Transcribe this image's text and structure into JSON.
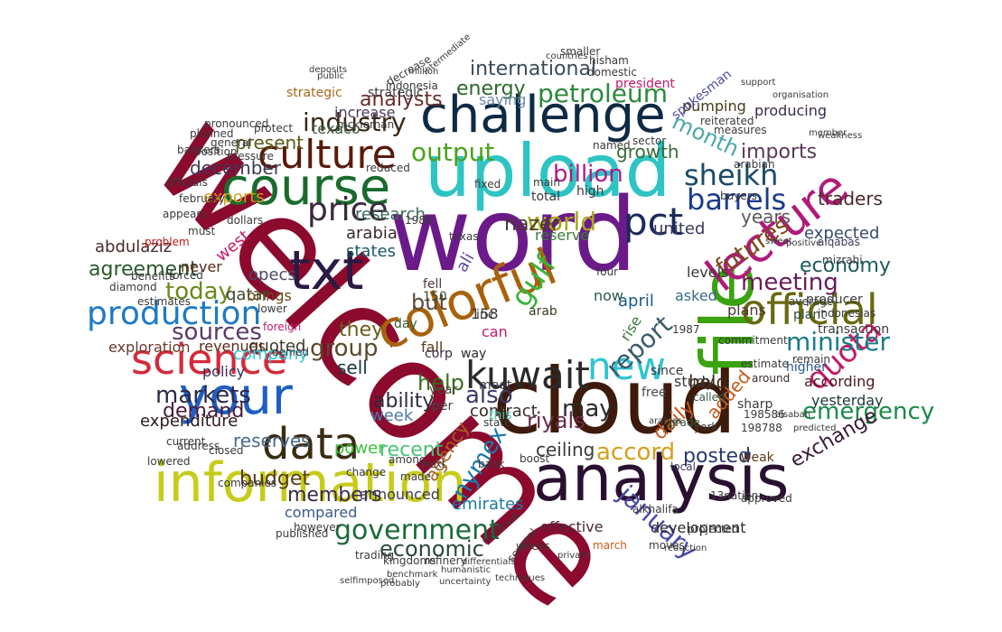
{
  "cloud": {
    "shape": "ellipse",
    "background": "#ffffff",
    "words": [
      {
        "text": "welcome",
        "color": "#8b0a2e"
      },
      {
        "text": "word",
        "color": "#6b1a8a"
      },
      {
        "text": "cloud",
        "color": "#3d1a0a"
      },
      {
        "text": "challenge",
        "color": "#0f2a44"
      },
      {
        "text": "upload",
        "color": "#2ec4c4"
      },
      {
        "text": "analysis",
        "color": "#2a1030"
      },
      {
        "text": "information",
        "color": "#c7cc1a"
      },
      {
        "text": "file",
        "color": "#3aa30f"
      },
      {
        "text": "course",
        "color": "#1a6b2e"
      },
      {
        "text": "culture",
        "color": "#5a1a0a"
      },
      {
        "text": "txt",
        "color": "#2a1a44"
      },
      {
        "text": "colorful",
        "color": "#a8620c"
      },
      {
        "text": "science",
        "color": "#d42a3a"
      },
      {
        "text": "your",
        "color": "#1f5fc4"
      },
      {
        "text": "data",
        "color": "#3a2a10"
      },
      {
        "text": "lecture",
        "color": "#b01a7a"
      },
      {
        "text": "pct",
        "color": "#1a2a5a"
      },
      {
        "text": "official",
        "color": "#6a6a10"
      },
      {
        "text": "kuwait",
        "color": "#2a2a2a"
      },
      {
        "text": "production",
        "color": "#1f7ac4"
      },
      {
        "text": "government",
        "color": "#1a6b3a"
      },
      {
        "text": "price",
        "color": "#3a2a3a"
      },
      {
        "text": "barrels",
        "color": "#1a3a8a"
      },
      {
        "text": "new",
        "color": "#2ec4d4"
      },
      {
        "text": "quota",
        "color": "#c41a6a"
      },
      {
        "text": "minister",
        "color": "#1a7a8a"
      },
      {
        "text": "meeting",
        "color": "#6a1a5a"
      },
      {
        "text": "petroleum",
        "color": "#2a8a3a"
      },
      {
        "text": "industry",
        "color": "#3a2a1a"
      },
      {
        "text": "output",
        "color": "#4aa31a"
      },
      {
        "text": "world",
        "color": "#a8a81a"
      },
      {
        "text": "billion",
        "color": "#b01a8a"
      },
      {
        "text": "sheikh",
        "color": "#1a4a6a"
      },
      {
        "text": "futures",
        "color": "#7a4a1a"
      },
      {
        "text": "gulf",
        "color": "#3ab43a"
      },
      {
        "text": "markets",
        "color": "#2a2a4a"
      },
      {
        "text": "sources",
        "color": "#5a3a6a"
      },
      {
        "text": "today",
        "color": "#6a8a1a"
      },
      {
        "text": "group",
        "color": "#5a4a2a"
      },
      {
        "text": "report",
        "color": "#3a5a6a"
      },
      {
        "text": "accord",
        "color": "#d4a01a"
      },
      {
        "text": "emergency",
        "color": "#1a8a4a"
      },
      {
        "text": "also",
        "color": "#3a3a6a"
      },
      {
        "text": "january",
        "color": "#4a4aa8"
      },
      {
        "text": "nymex",
        "color": "#1a7aa8"
      },
      {
        "text": "economic",
        "color": "#2a4a3a"
      },
      {
        "text": "members",
        "color": "#3a2a4a"
      },
      {
        "text": "budget",
        "color": "#5a3a1a"
      },
      {
        "text": "reserves",
        "color": "#4a6a8a"
      },
      {
        "text": "recent",
        "color": "#4ac47a"
      },
      {
        "text": "demand",
        "color": "#4a1a3a"
      },
      {
        "text": "agreement",
        "color": "#2a5a2a"
      },
      {
        "text": "month",
        "color": "#4aa8a8"
      },
      {
        "text": "imports",
        "color": "#5a3a5a"
      },
      {
        "text": "analysts",
        "color": "#6a2a2a"
      },
      {
        "text": "international",
        "color": "#3a4a5a"
      },
      {
        "text": "energy",
        "color": "#2a6a2a"
      },
      {
        "text": "december",
        "color": "#3a3a5a"
      },
      {
        "text": "present",
        "color": "#5a5a1a"
      },
      {
        "text": "nazer",
        "color": "#4a3a2a"
      },
      {
        "text": "economy",
        "color": "#1a5a5a"
      },
      {
        "text": "exchange",
        "color": "#3a1a3a"
      },
      {
        "text": "posted",
        "color": "#2a3a6a"
      },
      {
        "text": "riyals",
        "color": "#6a2a4a"
      },
      {
        "text": "daily",
        "color": "#c45a1a"
      },
      {
        "text": "help",
        "color": "#3a6a1a"
      },
      {
        "text": "ability",
        "color": "#2a2a3a"
      },
      {
        "text": "they",
        "color": "#6a5a1a"
      },
      {
        "text": "but",
        "color": "#5a4a3a"
      },
      {
        "text": "may",
        "color": "#2a2a2a"
      },
      {
        "text": "say",
        "color": "#4a3a4a"
      },
      {
        "text": "sell",
        "color": "#1a3a3a"
      },
      {
        "text": "quoted",
        "color": "#3a3a2a"
      },
      {
        "text": "expenditure",
        "color": "#2a1a1a"
      },
      {
        "text": "abdulaziz",
        "color": "#4a2a2a"
      },
      {
        "text": "exploration",
        "color": "#6a3a2a"
      },
      {
        "text": "revenues",
        "color": "#5a2a1a"
      },
      {
        "text": "policy",
        "color": "#3a2a5a"
      },
      {
        "text": "company",
        "color": "#2ec4d4"
      },
      {
        "text": "week",
        "color": "#4a7aa8"
      },
      {
        "text": "power",
        "color": "#3ac43a"
      },
      {
        "text": "agency",
        "color": "#a8621a"
      },
      {
        "text": "ceiling",
        "color": "#3a3a3a"
      },
      {
        "text": "contract",
        "color": "#3a2a2a"
      },
      {
        "text": "emirates",
        "color": "#1a7aa8"
      },
      {
        "text": "announced",
        "color": "#3a3a4a"
      },
      {
        "text": "compared",
        "color": "#3a5a8a"
      },
      {
        "text": "development",
        "color": "#2a2a2a"
      },
      {
        "text": "effective",
        "color": "#4a2a3a"
      },
      {
        "text": "years",
        "color": "#5a5a5a"
      },
      {
        "text": "traders",
        "color": "#4a2a2a"
      },
      {
        "text": "expected",
        "color": "#3a4a6a"
      },
      {
        "text": "growth",
        "color": "#3a6a3a"
      },
      {
        "text": "united",
        "color": "#3a3a5a"
      },
      {
        "text": "arabia",
        "color": "#3a2a2a"
      },
      {
        "text": "states",
        "color": "#1a5a6a"
      },
      {
        "text": "opecs",
        "color": "#4a4a6a"
      },
      {
        "text": "qatar",
        "color": "#3a4a2a"
      },
      {
        "text": "never",
        "color": "#5a2a1a"
      },
      {
        "text": "brings",
        "color": "#6a4a1a"
      },
      {
        "text": "west",
        "color": "#c41a6a"
      },
      {
        "text": "research",
        "color": "#3a6a5a"
      },
      {
        "text": "exports",
        "color": "#d4a01a"
      },
      {
        "text": "plans",
        "color": "#4a3a2a"
      },
      {
        "text": "levels",
        "color": "#3a3a3a"
      },
      {
        "text": "april",
        "color": "#1a5a8a"
      },
      {
        "text": "asked",
        "color": "#3a6a8a"
      },
      {
        "text": "according",
        "color": "#4a1a1a"
      },
      {
        "text": "producing",
        "color": "#3a2a4a"
      },
      {
        "text": "pumping",
        "color": "#4a3a1a"
      },
      {
        "text": "saying",
        "color": "#6a8aa8"
      },
      {
        "text": "increase",
        "color": "#4a3a5a"
      },
      {
        "text": "strategic",
        "color": "#a86a1a"
      },
      {
        "text": "texaco",
        "color": "#3a5a3a"
      },
      {
        "text": "yesterday",
        "color": "#1a3a3a"
      },
      {
        "text": "study",
        "color": "#3a3a3a"
      },
      {
        "text": "hold",
        "color": "#3a2a1a"
      },
      {
        "text": "added",
        "color": "#c45a1a"
      },
      {
        "text": "free",
        "color": "#4a4a4a"
      },
      {
        "text": "rise",
        "color": "#3a7a3a"
      },
      {
        "text": "inc",
        "color": "#3a3a3a"
      },
      {
        "text": "fall",
        "color": "#5a3a1a"
      },
      {
        "text": "fell",
        "color": "#4a3a3a"
      },
      {
        "text": "now",
        "color": "#2a5a4a"
      },
      {
        "text": "four",
        "color": "#3a3a3a"
      },
      {
        "text": "ali",
        "color": "#5a4aa8"
      },
      {
        "text": "150",
        "color": "#3a4a3a"
      },
      {
        "text": "158",
        "color": "#3a3a3a"
      },
      {
        "text": "arab",
        "color": "#3a3a2a"
      },
      {
        "text": "corp",
        "color": "#3a2a3a"
      },
      {
        "text": "way",
        "color": "#2a2a2a"
      },
      {
        "text": "meet",
        "color": "#3a3a4a"
      },
      {
        "text": "per",
        "color": "#3a4a4a"
      },
      {
        "text": "year",
        "color": "#4a4a3a"
      },
      {
        "text": "this",
        "color": "#4ac4a8"
      },
      {
        "text": "day",
        "color": "#3a5a3a"
      },
      {
        "text": "can",
        "color": "#c41a6a"
      },
      {
        "text": "reserve",
        "color": "#3a7a3a"
      },
      {
        "text": "total",
        "color": "#3a3a3a"
      },
      {
        "text": "high",
        "color": "#3a3a3a"
      },
      {
        "text": "fixed",
        "color": "#3a3a3a"
      },
      {
        "text": "main",
        "color": "#3a3a3a"
      },
      {
        "text": "grade",
        "color": "#3a5a3a"
      },
      {
        "text": "sharp",
        "color": "#3a3a3a"
      },
      {
        "text": "weak",
        "color": "#5a3a1a"
      },
      {
        "text": "york",
        "color": "#3a3a3a"
      },
      {
        "text": "called",
        "color": "#3a5a4a"
      },
      {
        "text": "since",
        "color": "#3a3a3a"
      },
      {
        "text": "local",
        "color": "#3a3a5a"
      },
      {
        "text": "remain",
        "color": "#3a3a3a"
      },
      {
        "text": "around",
        "color": "#3a2a2a"
      },
      {
        "text": "higher",
        "color": "#2a5a8a"
      },
      {
        "text": "producer",
        "color": "#3a3a3a"
      },
      {
        "text": "transaction",
        "color": "#3a3a3a"
      },
      {
        "text": "average",
        "color": "#3a3a3a"
      },
      {
        "text": "plant",
        "color": "#2a4a3a"
      },
      {
        "text": "indonesias",
        "color": "#3a3a3a"
      },
      {
        "text": "mizrahi",
        "color": "#3a3a3a"
      },
      {
        "text": "alqabas",
        "color": "#3a3a5a"
      },
      {
        "text": "reiterated",
        "color": "#3a3a3a"
      },
      {
        "text": "measures",
        "color": "#3a3a3a"
      },
      {
        "text": "spokesman",
        "color": "#4a4aa8"
      },
      {
        "text": "president",
        "color": "#c41a6a"
      },
      {
        "text": "domestic",
        "color": "#3a3a3a"
      },
      {
        "text": "hisham",
        "color": "#3a3a3a"
      },
      {
        "text": "smaller",
        "color": "#3a3a3a"
      },
      {
        "text": "countries",
        "color": "#3a3a3a"
      },
      {
        "text": "intermediate",
        "color": "#3a3a3a"
      },
      {
        "text": "decrease",
        "color": "#3a3a3a"
      },
      {
        "text": "mckiernan",
        "color": "#3a3a3a"
      },
      {
        "text": "indonesia",
        "color": "#3a3a3a"
      },
      {
        "text": "protect",
        "color": "#3a3a3a"
      },
      {
        "text": "pressure",
        "color": "#3a3a3a"
      },
      {
        "text": "reduced",
        "color": "#3a3a3a"
      },
      {
        "text": "sector",
        "color": "#3a3a3a"
      },
      {
        "text": "named",
        "color": "#3a3a3a"
      },
      {
        "text": "buyers",
        "color": "#3a3a3a"
      },
      {
        "text": "arabian",
        "color": "#3a3a3a"
      },
      {
        "text": "commitment",
        "color": "#3a3a3a"
      },
      {
        "text": "must",
        "color": "#3a3a3a"
      },
      {
        "text": "problem",
        "color": "#c41a1a"
      },
      {
        "text": "dollars",
        "color": "#3a3a3a"
      },
      {
        "text": "february",
        "color": "#3a3a3a"
      },
      {
        "text": "appears",
        "color": "#3a3a3a"
      },
      {
        "text": "1986",
        "color": "#3a3a3a"
      },
      {
        "text": "texas",
        "color": "#3a3a3a"
      },
      {
        "text": "lower",
        "color": "#3a3a3a"
      },
      {
        "text": "foreign",
        "color": "#c41a6a"
      },
      {
        "text": "denied",
        "color": "#3a3a3a"
      },
      {
        "text": "companies",
        "color": "#3a3a3a"
      },
      {
        "text": "however",
        "color": "#3a3a3a"
      },
      {
        "text": "published",
        "color": "#3a3a3a"
      },
      {
        "text": "trading",
        "color": "#3a3a3a"
      },
      {
        "text": "refinery",
        "color": "#3a3a3a"
      },
      {
        "text": "kingdoms",
        "color": "#3a3a3a"
      },
      {
        "text": "several",
        "color": "#3a3a3a"
      },
      {
        "text": "revenue",
        "color": "#3a3a3a"
      },
      {
        "text": "made",
        "color": "#3a3a3a"
      },
      {
        "text": "next",
        "color": "#3a3a3a"
      },
      {
        "text": "change",
        "color": "#3a3a3a"
      },
      {
        "text": "among",
        "color": "#3a3a3a"
      },
      {
        "text": "weeks",
        "color": "#3a3a3a"
      },
      {
        "text": "march",
        "color": "#c45a1a"
      },
      {
        "text": "boost",
        "color": "#3a3a3a"
      },
      {
        "text": "bank",
        "color": "#3a3a3a"
      },
      {
        "text": "moves",
        "color": "#3a3a3a"
      },
      {
        "text": "projected",
        "color": "#3a3a3a"
      },
      {
        "text": "approved",
        "color": "#3a3a3a"
      },
      {
        "text": "198586",
        "color": "#3a3a3a"
      },
      {
        "text": "198788",
        "color": "#3a3a3a"
      },
      {
        "text": "1987",
        "color": "#3a3a3a"
      },
      {
        "text": "13nation",
        "color": "#3a3a3a"
      },
      {
        "text": "alkhalifa",
        "color": "#3a3a3a"
      },
      {
        "text": "current",
        "color": "#3a3a3a"
      },
      {
        "text": "lowered",
        "color": "#3a3a3a"
      },
      {
        "text": "address",
        "color": "#3a3a3a"
      },
      {
        "text": "closed",
        "color": "#3a3a3a"
      },
      {
        "text": "estimates",
        "color": "#3a3a3a"
      },
      {
        "text": "diamond",
        "color": "#3a3a3a"
      },
      {
        "text": "benefits",
        "color": "#3a3a3a"
      },
      {
        "text": "forced",
        "color": "#3a3a3a"
      },
      {
        "text": "estimate",
        "color": "#3a3a3a"
      },
      {
        "text": "state",
        "color": "#3a3a3a"
      },
      {
        "text": "officials",
        "color": "#3a3a3a"
      },
      {
        "text": "position",
        "color": "#3a3a3a"
      },
      {
        "text": "general",
        "color": "#3a3a3a"
      },
      {
        "text": "strategic",
        "color": "#3a3a3a"
      },
      {
        "text": "pronounced",
        "color": "#3a3a3a"
      },
      {
        "text": "planned",
        "color": "#3a3a3a"
      },
      {
        "text": "bankers",
        "color": "#3a3a3a"
      },
      {
        "text": "deposits",
        "color": "#3a3a3a"
      },
      {
        "text": "public",
        "color": "#3a3a3a"
      },
      {
        "text": "million",
        "color": "#3a3a3a"
      },
      {
        "text": "support",
        "color": "#3a3a3a"
      },
      {
        "text": "organisation",
        "color": "#3a3a3a"
      },
      {
        "text": "member",
        "color": "#3a3a3a"
      },
      {
        "text": "weakness",
        "color": "#3a3a3a"
      },
      {
        "text": "reduction",
        "color": "#3a3a3a"
      },
      {
        "text": "uncertainty",
        "color": "#3a3a3a"
      },
      {
        "text": "techniques",
        "color": "#3a3a3a"
      },
      {
        "text": "differentials",
        "color": "#3a3a3a"
      },
      {
        "text": "humanistic",
        "color": "#3a3a3a"
      },
      {
        "text": "benchmark",
        "color": "#3a3a3a"
      },
      {
        "text": "probably",
        "color": "#3a3a3a"
      },
      {
        "text": "selfimposed",
        "color": "#3a3a3a"
      },
      {
        "text": "private",
        "color": "#3a3a3a"
      },
      {
        "text": "sweet",
        "color": "#3a3a3a"
      },
      {
        "text": "positive",
        "color": "#3a3a3a"
      },
      {
        "text": "alsabah",
        "color": "#3a3a3a"
      },
      {
        "text": "predicted",
        "color": "#3a3a3a"
      },
      {
        "text": "arabias",
        "color": "#3a3a3a"
      }
    ]
  }
}
